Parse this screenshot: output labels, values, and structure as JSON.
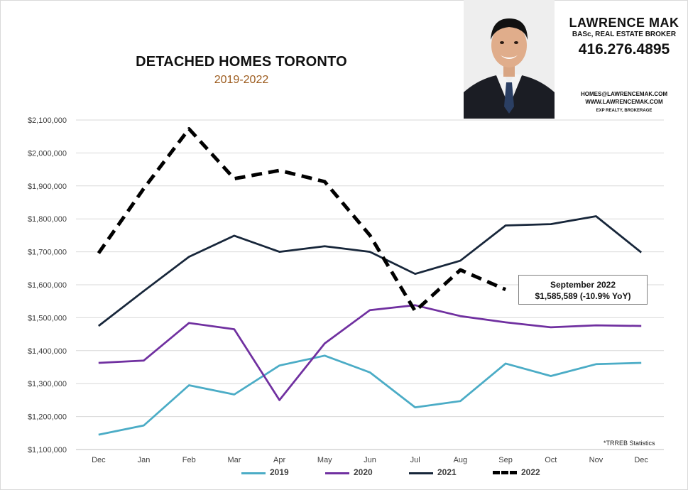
{
  "header": {
    "title": "DETACHED HOMES TORONTO",
    "subtitle": "2019-2022"
  },
  "agent": {
    "name": "LAWRENCE MAK",
    "credentials": "BASc, REAL ESTATE BROKER",
    "phone": "416.276.4895",
    "email": "HOMES@LAWRENCEMAK.COM",
    "website": "WWW.LAWRENCEMAK.COM",
    "brokerage": "EXP REALTY, BROKERAGE"
  },
  "callout": {
    "line1": "September 2022",
    "line2": "$1,585,589  (-10.9%  YoY)"
  },
  "source_note": "*TRREB Statistics",
  "chart_data": {
    "type": "line",
    "title": "DETACHED HOMES TORONTO",
    "subtitle": "2019-2022",
    "categories": [
      "Dec",
      "Jan",
      "Feb",
      "Mar",
      "Apr",
      "May",
      "Jun",
      "Jul",
      "Aug",
      "Sep",
      "Oct",
      "Nov",
      "Dec"
    ],
    "ylim": [
      1100000,
      2100000
    ],
    "yticks": [
      1100000,
      1200000,
      1300000,
      1400000,
      1500000,
      1600000,
      1700000,
      1800000,
      1900000,
      2000000,
      2100000
    ],
    "ytick_labels": [
      "$1,100,000",
      "$1,200,000",
      "$1,300,000",
      "$1,400,000",
      "$1,500,000",
      "$1,600,000",
      "$1,700,000",
      "$1,800,000",
      "$1,900,000",
      "$2,000,000",
      "$2,100,000"
    ],
    "grid": true,
    "legend_position": "bottom",
    "series": [
      {
        "name": "2019",
        "color": "#4bacc6",
        "dashed": false,
        "values": [
          1145000,
          1173000,
          1295000,
          1267000,
          1355000,
          1385000,
          1334000,
          1228000,
          1247000,
          1361000,
          1323000,
          1359000,
          1363000
        ]
      },
      {
        "name": "2020",
        "color": "#7030a0",
        "dashed": false,
        "values": [
          1363000,
          1370000,
          1484000,
          1465000,
          1250000,
          1422000,
          1523000,
          1538000,
          1505000,
          1486000,
          1471000,
          1477000,
          1475000
        ]
      },
      {
        "name": "2021",
        "color": "#17263a",
        "dashed": false,
        "values": [
          1475000,
          1581000,
          1685000,
          1749000,
          1700000,
          1717000,
          1700000,
          1633000,
          1673000,
          1780000,
          1784000,
          1808000,
          1698000
        ]
      },
      {
        "name": "2022",
        "color": "#000000",
        "dashed": true,
        "values": [
          1696000,
          1892000,
          2073000,
          1922000,
          1947000,
          1913000,
          1750000,
          1520000,
          1645000,
          1585589,
          null,
          null,
          null
        ]
      }
    ]
  }
}
